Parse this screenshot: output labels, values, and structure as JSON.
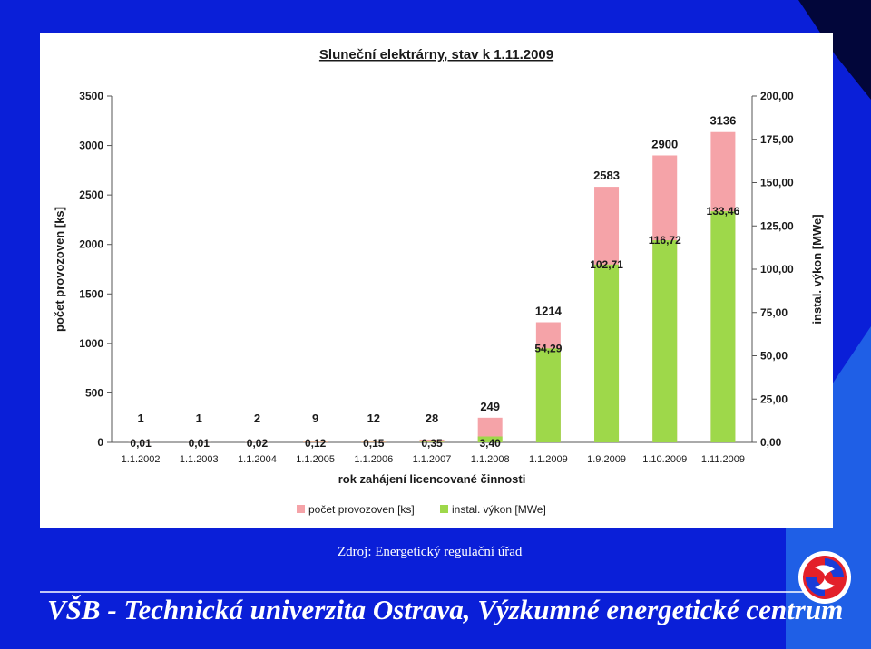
{
  "slide": {
    "source": "Zdroj: Energetický regulační úřad",
    "footer": "VŠB - Technická univerzita Ostrava, Výzkumné energetické centrum",
    "colors": {
      "background": "#0a1fd8",
      "accent": "#1f5fe6",
      "logo_red": "#e3202a"
    }
  },
  "chart_data": {
    "type": "bar",
    "title": "Sluneční elektrárny, stav k 1.11.2009",
    "xlabel": "rok zahájení licencované činnosti",
    "ylabel": "počet provozoven [ks]",
    "y2label": "instal. výkon [MWe]",
    "categories": [
      "1.1.2002",
      "1.1.2003",
      "1.1.2004",
      "1.1.2005",
      "1.1.2006",
      "1.1.2007",
      "1.1.2008",
      "1.1.2009",
      "1.9.2009",
      "1.10.2009",
      "1.11.2009"
    ],
    "ylim": [
      0,
      3500
    ],
    "y2lim": [
      0,
      200
    ],
    "yticks": [
      "0",
      "500",
      "1000",
      "1500",
      "2000",
      "2500",
      "3000",
      "3500"
    ],
    "y2ticks": [
      "0,00",
      "25,00",
      "50,00",
      "75,00",
      "100,00",
      "125,00",
      "150,00",
      "175,00",
      "200,00"
    ],
    "series": [
      {
        "name": "počet provozoven [ks]",
        "axis": "left",
        "color": "#f5a3a8",
        "values": [
          1,
          1,
          2,
          9,
          12,
          28,
          249,
          1214,
          2583,
          2900,
          3136
        ],
        "labels": [
          "1",
          "1",
          "2",
          "9",
          "12",
          "28",
          "249",
          "1214",
          "2583",
          "2900",
          "3136"
        ]
      },
      {
        "name": "instal. výkon [MWe]",
        "axis": "right",
        "color": "#9ed84a",
        "values": [
          0.01,
          0.01,
          0.02,
          0.12,
          0.15,
          0.35,
          3.4,
          54.29,
          102.71,
          116.72,
          133.46
        ],
        "labels": [
          "0,01",
          "0,01",
          "0,02",
          "0,12",
          "0,15",
          "0,35",
          "3,40",
          "54,29",
          "102,71",
          "116,72",
          "133,46"
        ]
      }
    ],
    "legend_position": "bottom",
    "grid": false
  }
}
